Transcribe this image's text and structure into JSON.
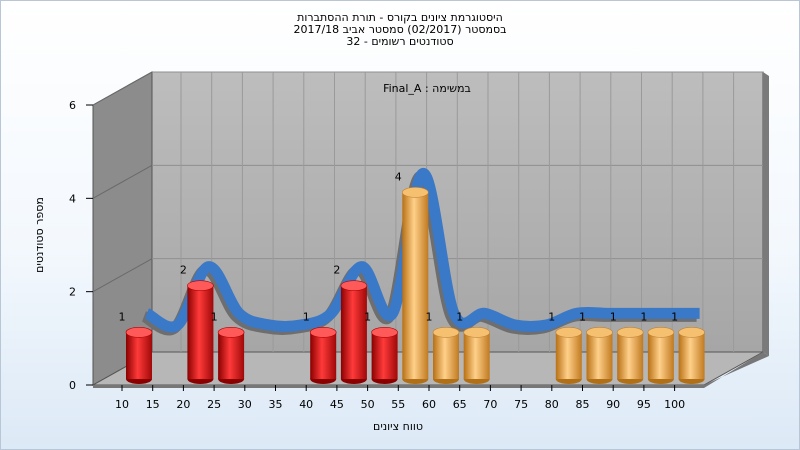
{
  "header": {
    "title_line1": "היסטוגרמת ציונים בקורס - תורת ההסתברות",
    "title_line2": "בסמסטר  (02/2017)  סמסטר אביב 2017/18",
    "title_line3": "סטודנטים רשומים - 32"
  },
  "chart_data": {
    "type": "bar",
    "title": "היסטוגרמת ציונים בקורס - תורת ההסתברות",
    "subtitle": "בסמסטר  (02/2017)  סמסטר אביב 2017/18 | סטודנטים רשומים - 32",
    "annotation": "במשימה : Final_A",
    "xlabel": "טווח ציונים",
    "ylabel": "מספר סטודנטים",
    "ylim": [
      0,
      6
    ],
    "yticks": [
      "0",
      "2",
      "4",
      "6"
    ],
    "grid": true,
    "three_d": true,
    "categories": [
      "10",
      "15",
      "20",
      "25",
      "30",
      "35",
      "40",
      "45",
      "50",
      "55",
      "60",
      "65",
      "70",
      "75",
      "80",
      "85",
      "90",
      "95",
      "100"
    ],
    "series": [
      {
        "values": [
          1,
          0,
          2,
          1,
          0,
          0,
          1,
          2,
          1,
          4,
          1,
          1,
          0,
          0,
          1,
          1,
          1,
          1,
          1
        ]
      }
    ],
    "bar_colors": [
      "#e01818",
      "#e01818",
      "#e01818",
      "#e01818",
      "#e01818",
      "#e01818",
      "#e01818",
      "#e01818",
      "#e01818",
      "#e8a838",
      "#e8a838",
      "#e8a838",
      "#e8a838",
      "#e8a838",
      "#e8a838",
      "#e8a838",
      "#e8a838",
      "#e8a838",
      "#e8a838"
    ],
    "curve_color": "#3a78c8",
    "curve_shadow_color": "#6e6e6e"
  }
}
